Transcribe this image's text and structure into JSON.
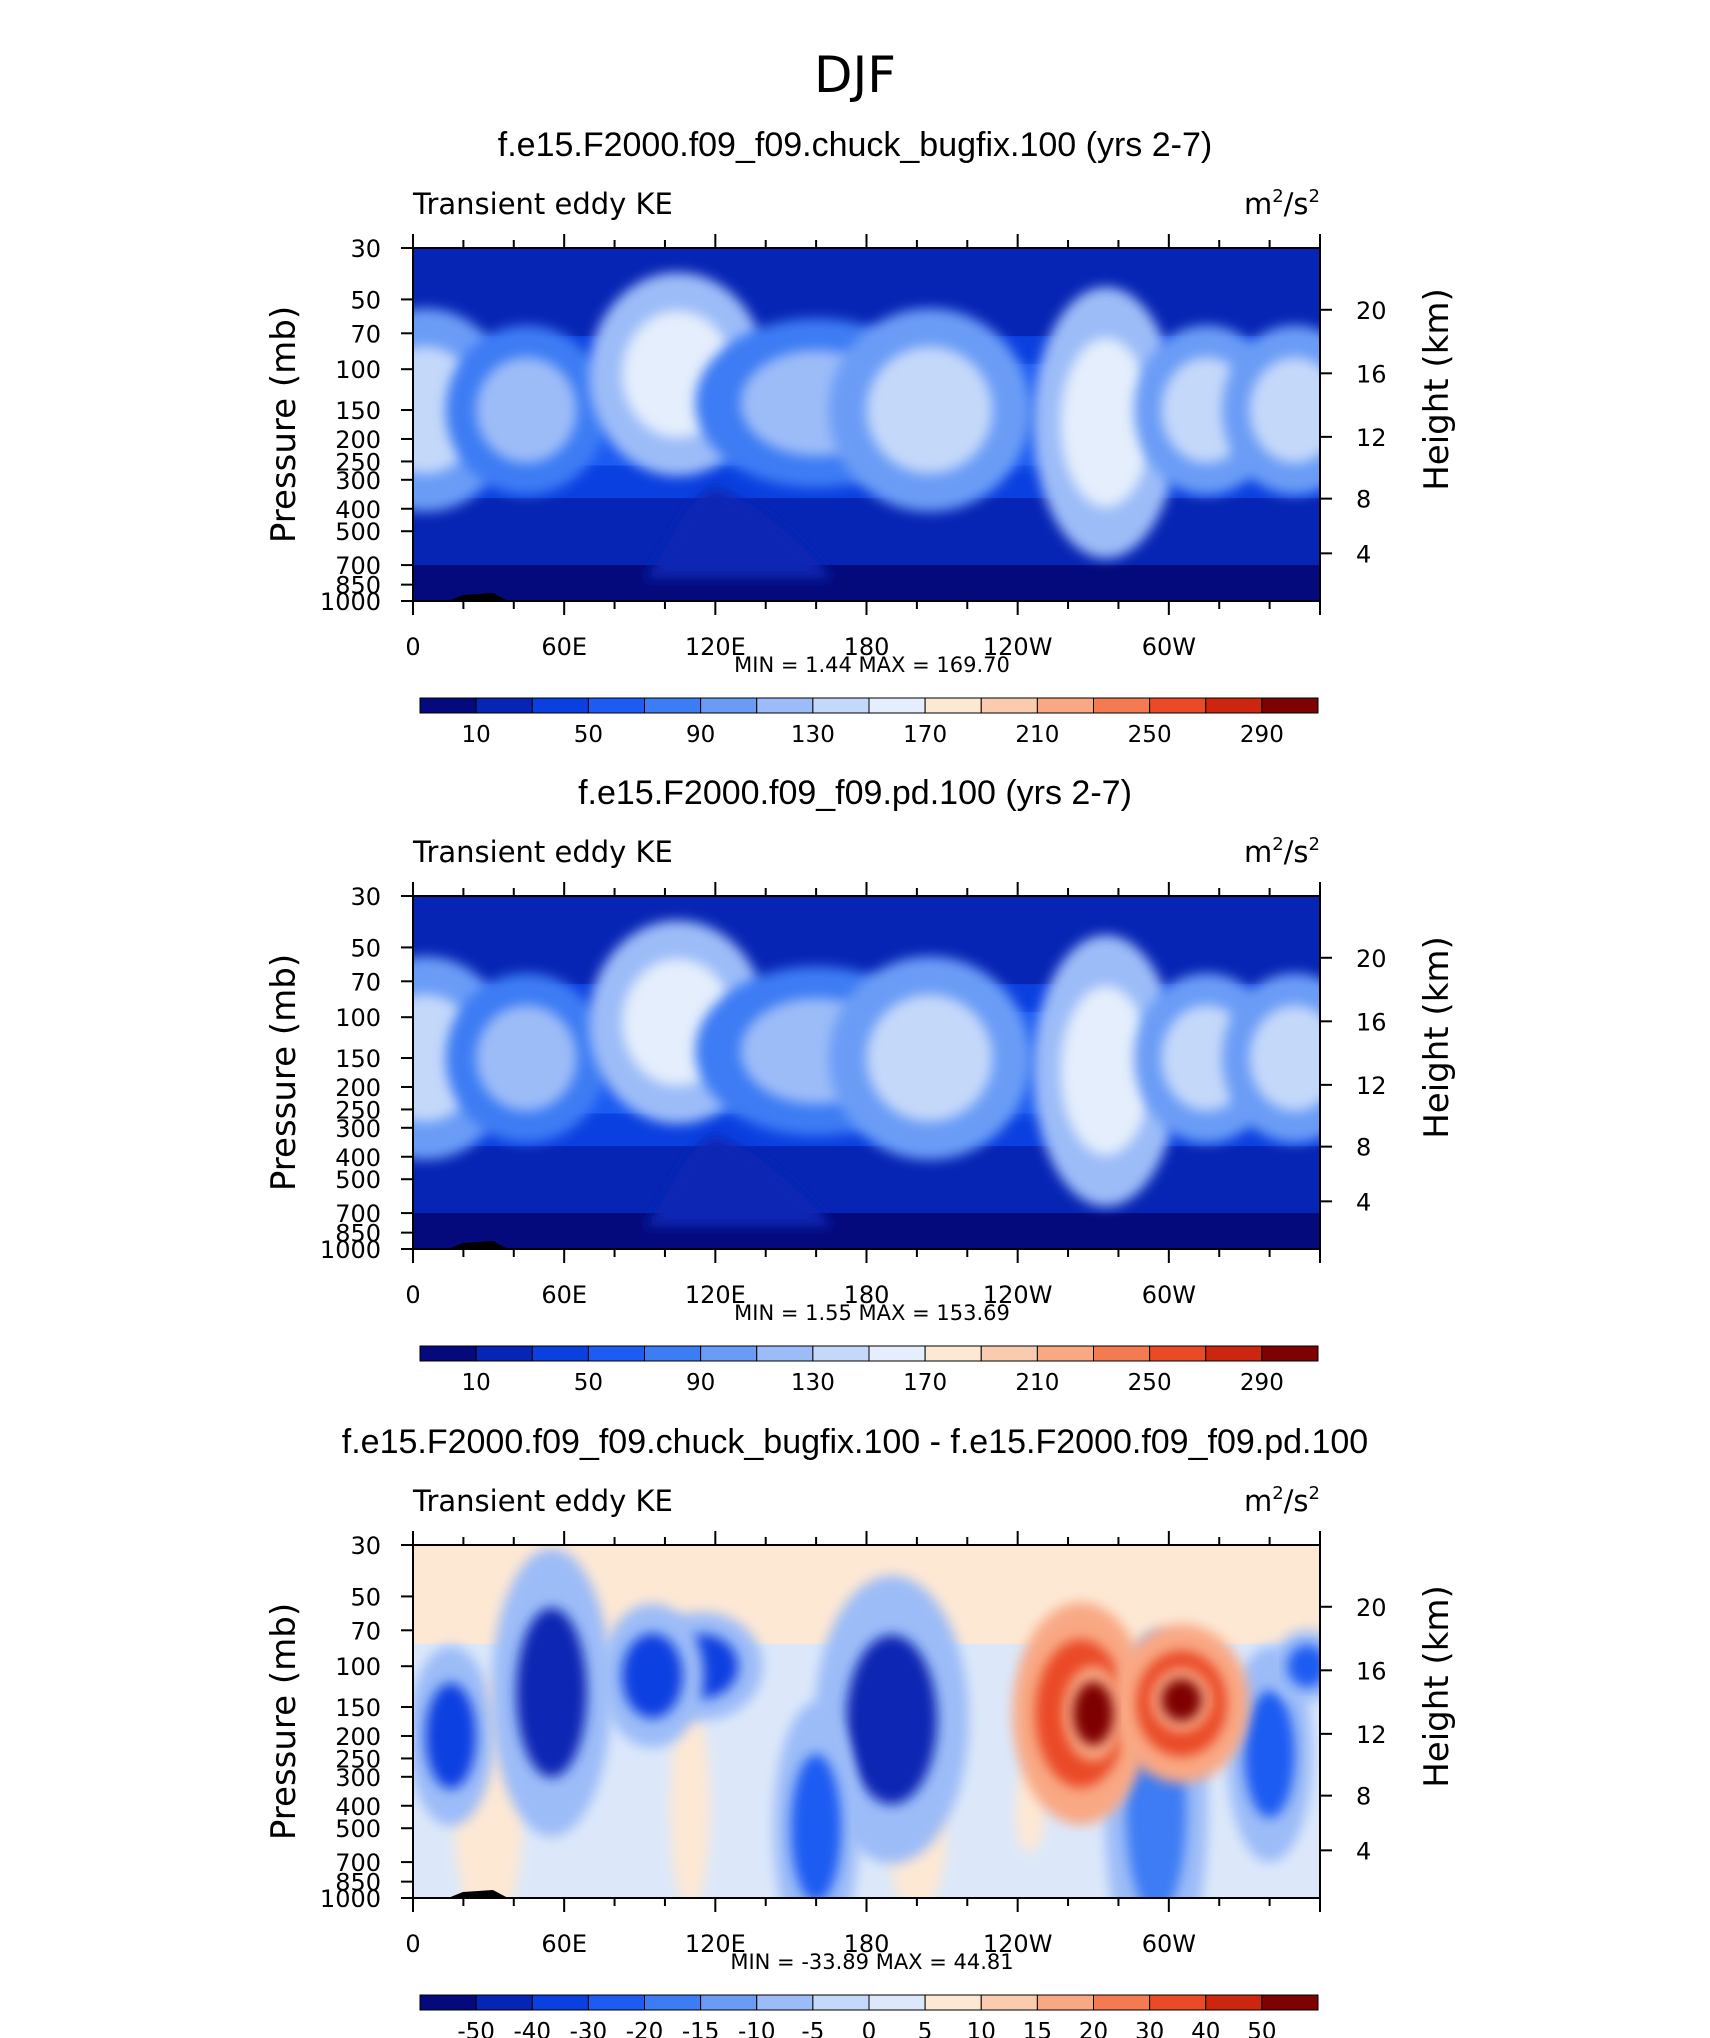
{
  "figure_title": "DJF",
  "colors": {
    "panel_scale_12": [
      "#040a7c",
      "#0725b4",
      "#0b40e0",
      "#1c5cf2",
      "#3c7cf4",
      "#6a9cf6",
      "#9cbcf8",
      "#c4d8fa",
      "#e4eefc",
      "#fde8d4",
      "#fbcbb0",
      "#f9a884",
      "#f47a52",
      "#ea4a26",
      "#cc2610",
      "#7e0204"
    ],
    "diff_scale": [
      "#040a7c",
      "#0725b4",
      "#0b40e0",
      "#1c5cf2",
      "#3c7cf4",
      "#6a9cf6",
      "#9cbcf8",
      "#c4d8fa",
      "#dce8fa",
      "#fde8d4",
      "#fbcbb0",
      "#f9a884",
      "#f47a52",
      "#ea4a26",
      "#cc2610",
      "#7e0204"
    ],
    "terrain": "#000000"
  },
  "chart_data": [
    {
      "type": "heatmap",
      "title": "f.e15.F2000.f09_f09.chuck_bugfix.100 (yrs 2-7)",
      "left_string": "Transient eddy KE",
      "right_string": "m2/s2",
      "units_base": "m",
      "units_exp1": "2",
      "units_mid": "/s",
      "units_exp2": "2",
      "xlabel": "",
      "ylabel": "Pressure (mb)",
      "y2label": "Height (km)",
      "x_ticks": [
        "0",
        "60E",
        "120E",
        "180",
        "120W",
        "60W"
      ],
      "x_range": [
        0,
        360
      ],
      "y_ticks": [
        "30",
        "50",
        "70",
        "100",
        "150",
        "200",
        "250",
        "300",
        "400",
        "500",
        "700",
        "850",
        "1000"
      ],
      "y_tick_values": [
        30,
        50,
        70,
        100,
        150,
        200,
        250,
        300,
        400,
        500,
        700,
        850,
        1000
      ],
      "y2_ticks": [
        "20",
        "16",
        "12",
        "8",
        "4"
      ],
      "stats_text": "MIN =     1.44   MAX =  169.70",
      "min": 1.44,
      "max": 169.7,
      "colorbar_labels": [
        "10",
        "50",
        "90",
        "130",
        "170",
        "210",
        "250",
        "290"
      ],
      "colorbar_levels": [
        10,
        30,
        50,
        70,
        90,
        110,
        130,
        150,
        170,
        190,
        210,
        230,
        250,
        270,
        290
      ]
    },
    {
      "type": "heatmap",
      "title": "f.e15.F2000.f09_f09.pd.100 (yrs 2-7)",
      "left_string": "Transient eddy KE",
      "right_string": "m2/s2",
      "units_base": "m",
      "units_exp1": "2",
      "units_mid": "/s",
      "units_exp2": "2",
      "xlabel": "",
      "ylabel": "Pressure (mb)",
      "y2label": "Height (km)",
      "x_ticks": [
        "0",
        "60E",
        "120E",
        "180",
        "120W",
        "60W"
      ],
      "x_range": [
        0,
        360
      ],
      "y_ticks": [
        "30",
        "50",
        "70",
        "100",
        "150",
        "200",
        "250",
        "300",
        "400",
        "500",
        "700",
        "850",
        "1000"
      ],
      "y_tick_values": [
        30,
        50,
        70,
        100,
        150,
        200,
        250,
        300,
        400,
        500,
        700,
        850,
        1000
      ],
      "y2_ticks": [
        "20",
        "16",
        "12",
        "8",
        "4"
      ],
      "stats_text": "MIN =     1.55   MAX =  153.69",
      "min": 1.55,
      "max": 153.69,
      "colorbar_labels": [
        "10",
        "50",
        "90",
        "130",
        "170",
        "210",
        "250",
        "290"
      ],
      "colorbar_levels": [
        10,
        30,
        50,
        70,
        90,
        110,
        130,
        150,
        170,
        190,
        210,
        230,
        250,
        270,
        290
      ]
    },
    {
      "type": "heatmap",
      "title": "f.e15.F2000.f09_f09.chuck_bugfix.100 - f.e15.F2000.f09_f09.pd.100",
      "left_string": "Transient eddy KE",
      "right_string": "m2/s2",
      "units_base": "m",
      "units_exp1": "2",
      "units_mid": "/s",
      "units_exp2": "2",
      "xlabel": "",
      "ylabel": "Pressure (mb)",
      "y2label": "Height (km)",
      "x_ticks": [
        "0",
        "60E",
        "120E",
        "180",
        "120W",
        "60W"
      ],
      "x_range": [
        0,
        360
      ],
      "y_ticks": [
        "30",
        "50",
        "70",
        "100",
        "150",
        "200",
        "250",
        "300",
        "400",
        "500",
        "700",
        "850",
        "1000"
      ],
      "y_tick_values": [
        30,
        50,
        70,
        100,
        150,
        200,
        250,
        300,
        400,
        500,
        700,
        850,
        1000
      ],
      "y2_ticks": [
        "20",
        "16",
        "12",
        "8",
        "4"
      ],
      "stats_text": "MIN =  -33.89   MAX =    44.81",
      "min": -33.89,
      "max": 44.81,
      "colorbar_labels": [
        "-50",
        "-40",
        "-30",
        "-20",
        "-15",
        "-10",
        "-5",
        "0",
        "5",
        "10",
        "15",
        "20",
        "30",
        "40",
        "50"
      ],
      "colorbar_levels": [
        -50,
        -40,
        -30,
        -20,
        -15,
        -10,
        -5,
        0,
        5,
        10,
        15,
        20,
        30,
        40,
        50
      ]
    }
  ]
}
